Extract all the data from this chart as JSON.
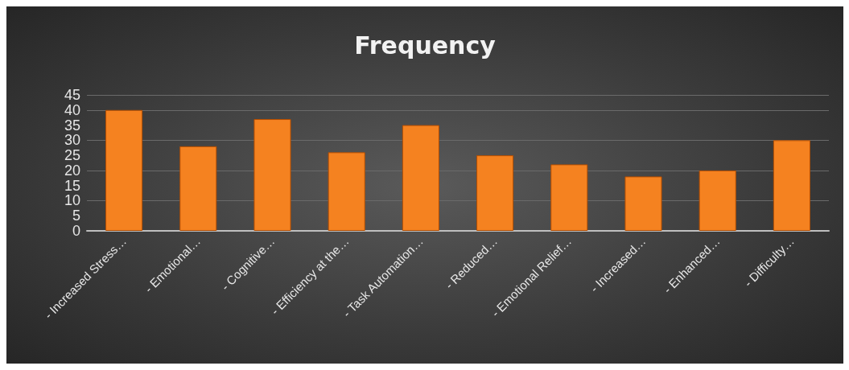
{
  "chart_data": {
    "type": "bar",
    "title": "Frequency",
    "categories": [
      "- Increased Stress…",
      "- Emotional…",
      "- Cognitive…",
      "- Efficiency at the…",
      "- Task Automation…",
      "- Reduced…",
      "- Emotional Relief…",
      "- Increased…",
      "- Enhanced…",
      "- Difficulty…"
    ],
    "values": [
      40,
      28,
      37,
      26,
      35,
      25,
      22,
      18,
      20,
      30
    ],
    "color": "#f58220",
    "ylim": [
      0,
      45
    ],
    "yticks": [
      0,
      5,
      10,
      15,
      20,
      25,
      30,
      35,
      40,
      45
    ],
    "grid": "y"
  }
}
